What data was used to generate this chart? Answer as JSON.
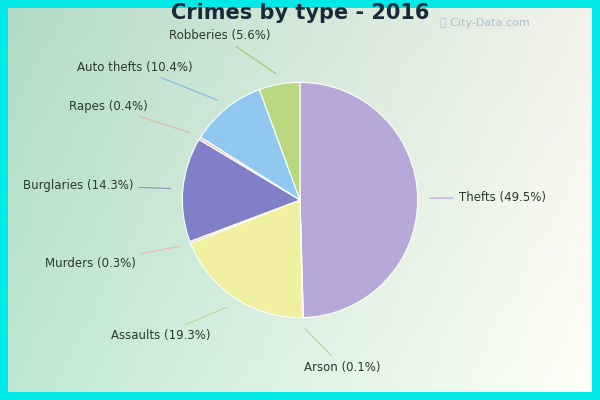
{
  "title": "Crimes by type - 2016",
  "slices": [
    {
      "label": "Thefts (49.5%)",
      "value": 49.5,
      "color": "#b8a8d8"
    },
    {
      "label": "Arson (0.1%)",
      "value": 0.1,
      "color": "#f0f0c0"
    },
    {
      "label": "Assaults (19.3%)",
      "value": 19.3,
      "color": "#f0f0a0"
    },
    {
      "label": "Murders (0.3%)",
      "value": 0.3,
      "color": "#f5c8c0"
    },
    {
      "label": "Burglaries (14.3%)",
      "value": 14.3,
      "color": "#8080c8"
    },
    {
      "label": "Rapes (0.4%)",
      "value": 0.4,
      "color": "#f0c8b0"
    },
    {
      "label": "Auto thefts (10.4%)",
      "value": 10.4,
      "color": "#90c8f0"
    },
    {
      "label": "Robberies (5.6%)",
      "value": 5.6,
      "color": "#b8d880"
    }
  ],
  "cyan_border": "#00e8e8",
  "bg_gradient_left": "#c0e8d0",
  "bg_gradient_right": "#e8f4ec",
  "title_color": "#1a2a3a",
  "label_color": "#2a3a2a",
  "label_fontsize": 8.5,
  "title_fontsize": 15,
  "watermark": "City-Data.com",
  "watermark_color": "#a0b8c8"
}
